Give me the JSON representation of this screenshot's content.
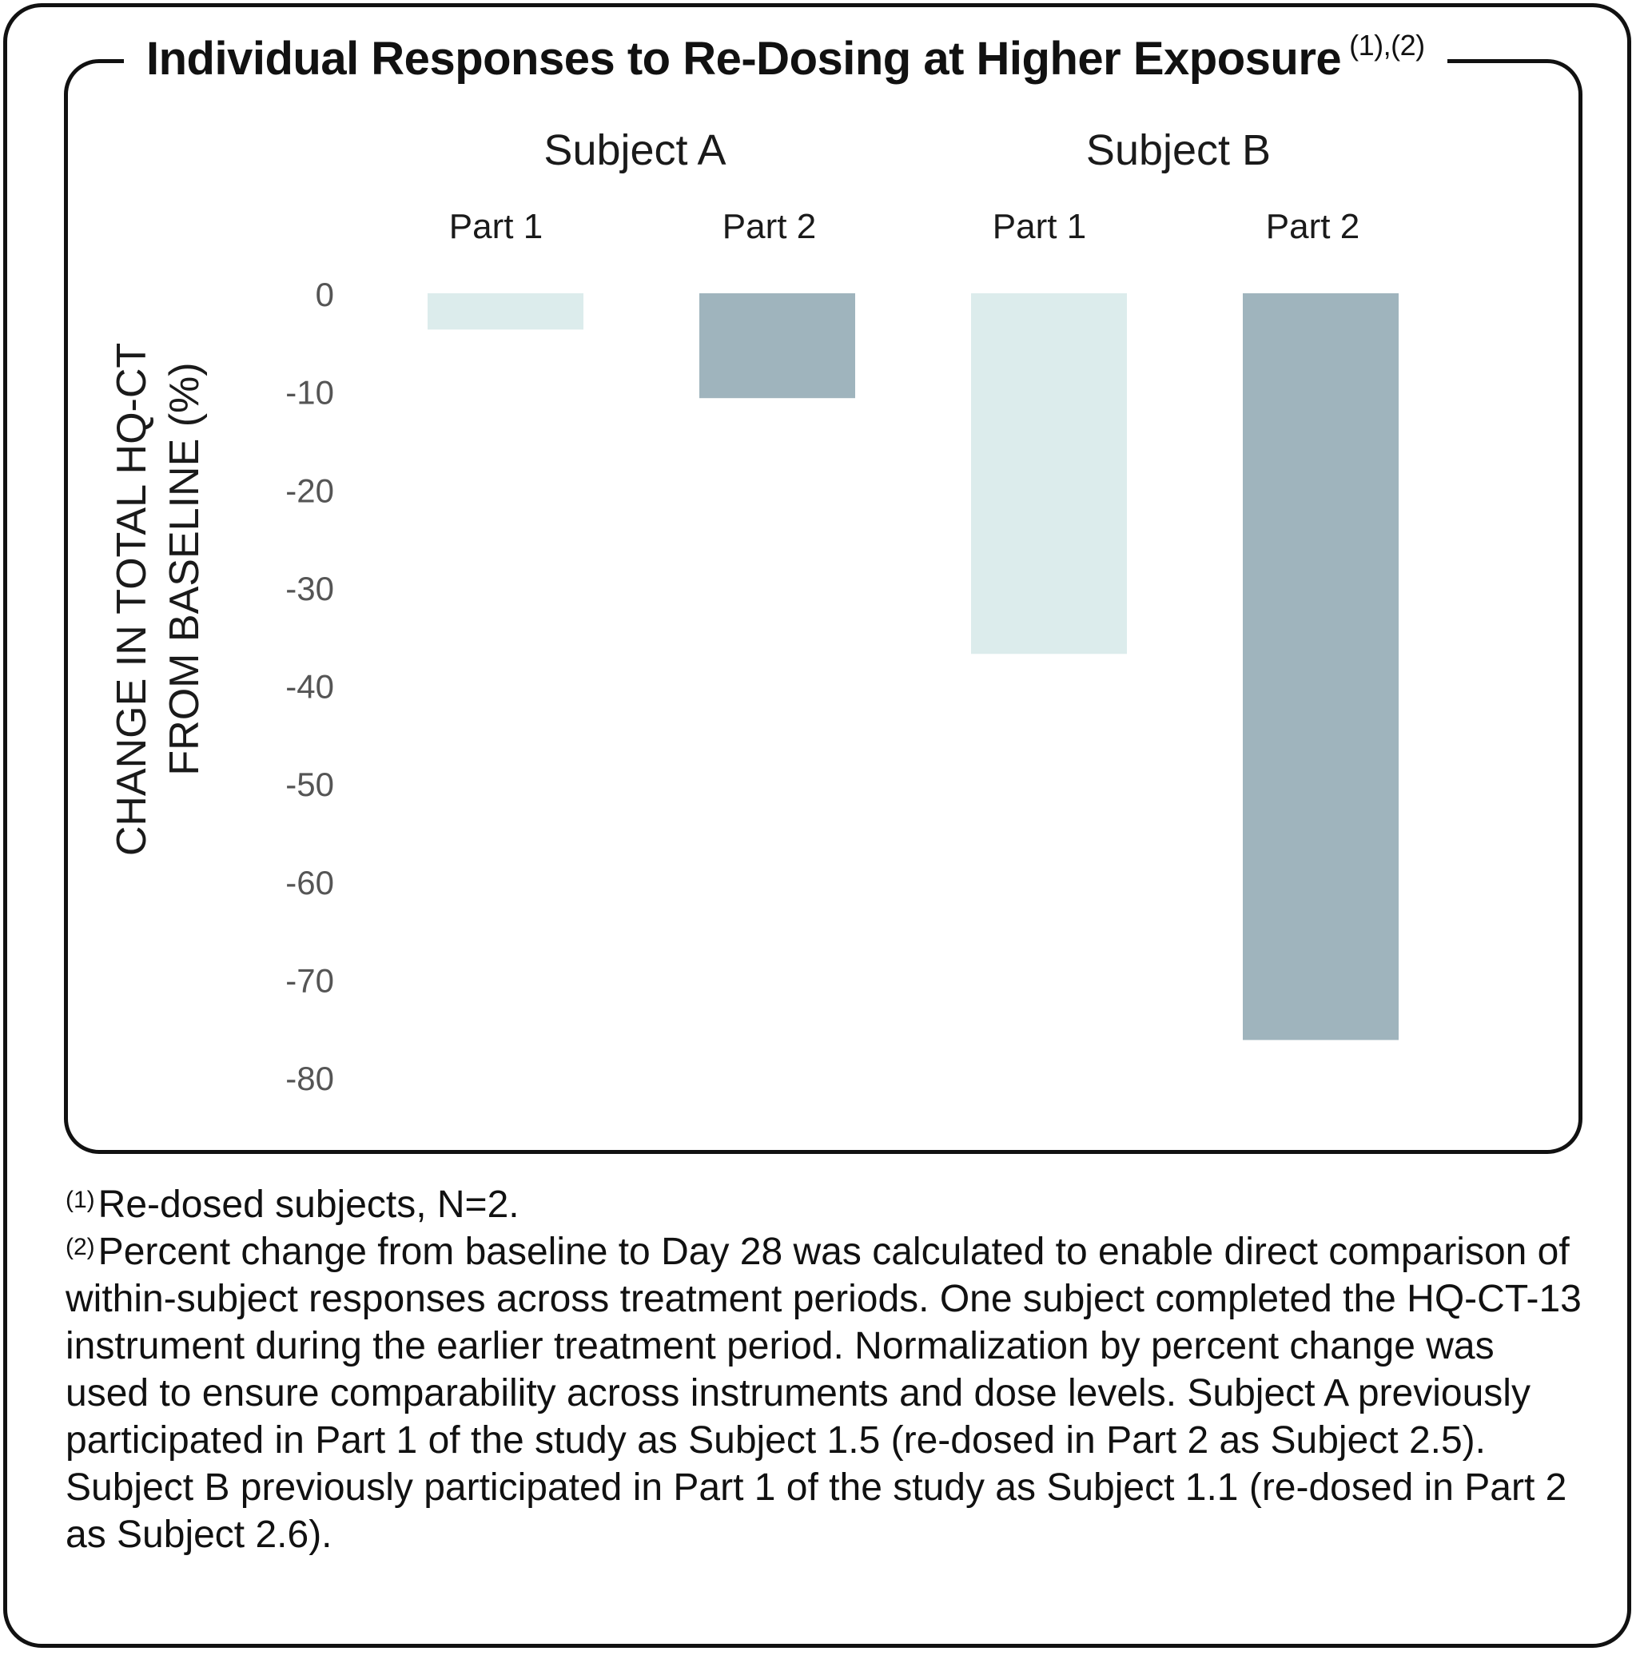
{
  "title": "Individual Responses to Re-Dosing at Higher Exposure",
  "title_refs": "(1),(2)",
  "chart_data": {
    "type": "bar",
    "groups": [
      {
        "label": "Subject A",
        "parts": [
          "Part 1",
          "Part 2"
        ]
      },
      {
        "label": "Subject B",
        "parts": [
          "Part 1",
          "Part 2"
        ]
      }
    ],
    "series": [
      {
        "values": [
          -3.7,
          -36.8
        ]
      },
      {
        "values": [
          -10.7,
          -76.2
        ]
      }
    ],
    "colors": {
      "part1": "#dcecec",
      "part2": "#9fb4bd"
    },
    "ylabel_line1": "CHANGE IN TOTAL HQ-CT",
    "ylabel_line2": "FROM BASELINE (%)",
    "yticks": [
      0,
      -10,
      -20,
      -30,
      -40,
      -50,
      -60,
      -70,
      -80
    ],
    "ylim": [
      -80,
      0
    ],
    "grid": false
  },
  "footnotes": [
    {
      "ref": "(1)",
      "text": "Re-dosed subjects, N=2."
    },
    {
      "ref": "(2)",
      "text": "Percent change from baseline to Day 28 was calculated to enable direct comparison of within-subject responses across treatment periods. One subject completed the HQ-CT-13 instrument during the earlier treatment period. Normalization by percent change was used to ensure comparability across instruments and dose levels. Subject A previously participated in Part 1 of the study as Subject 1.5 (re-dosed in Part 2 as Subject 2.5). Subject B previously participated in Part 1 of the study as Subject 1.1 (re-dosed in Part 2 as Subject 2.6)."
    }
  ]
}
